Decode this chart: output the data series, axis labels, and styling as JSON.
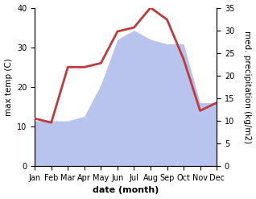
{
  "months": [
    "Jan",
    "Feb",
    "Mar",
    "Apr",
    "May",
    "Jun",
    "Jul",
    "Aug",
    "Sep",
    "Oct",
    "Nov",
    "Dec"
  ],
  "temp": [
    12,
    11,
    25,
    25,
    26,
    34,
    35,
    40,
    37,
    27,
    14,
    16
  ],
  "precip": [
    10,
    10,
    10,
    11,
    18,
    28,
    30,
    28,
    27,
    27,
    14,
    14
  ],
  "temp_color": "#c0393b",
  "precip_color": "#b8c4ee",
  "ylim_temp": [
    0,
    40
  ],
  "ylim_precip": [
    0,
    35
  ],
  "yticks_temp": [
    0,
    10,
    20,
    30,
    40
  ],
  "yticks_precip": [
    0,
    5,
    10,
    15,
    20,
    25,
    30,
    35
  ],
  "ylabel_left": "max temp (C)",
  "ylabel_right": "med. precipitation (kg/m2)",
  "xlabel": "date (month)",
  "bg_color": "#ffffff",
  "temp_linewidth": 2.0,
  "xlabel_fontsize": 8,
  "ylabel_fontsize": 7.5,
  "tick_fontsize": 7
}
